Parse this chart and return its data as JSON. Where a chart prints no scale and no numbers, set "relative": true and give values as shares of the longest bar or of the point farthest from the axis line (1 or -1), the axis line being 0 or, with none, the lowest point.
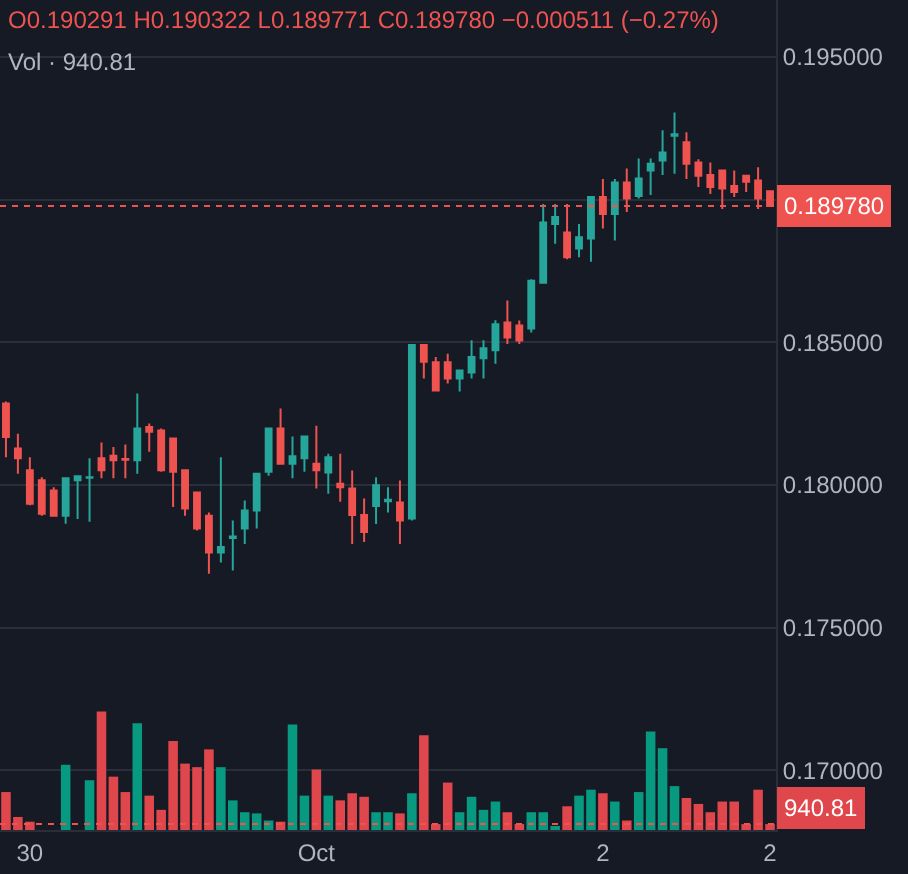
{
  "chart_data": [
    {
      "type": "candlestick",
      "categories": [
        null,
        null,
        "30",
        null,
        null,
        null,
        null,
        null,
        null,
        null,
        null,
        null,
        null,
        null,
        null,
        null,
        null,
        null,
        null,
        null,
        null,
        null,
        null,
        null,
        null,
        null,
        "Oct",
        null,
        null,
        null,
        null,
        null,
        null,
        null,
        null,
        null,
        null,
        null,
        null,
        null,
        null,
        null,
        null,
        null,
        null,
        null,
        null,
        null,
        null,
        null,
        "2",
        null,
        null,
        null,
        null,
        null,
        null,
        null,
        null,
        null,
        null,
        null,
        null,
        null,
        "2"
      ],
      "ohlc": [
        [
          0.18285,
          0.18292,
          0.18097,
          0.18168
        ],
        [
          0.18128,
          0.18179,
          0.18039,
          0.18093
        ],
        [
          0.18051,
          0.18097,
          0.17929,
          0.17934
        ],
        [
          0.18016,
          0.18027,
          0.17892,
          0.17899
        ],
        [
          0.1798,
          0.17992,
          0.17892,
          0.17892
        ],
        [
          0.17892,
          0.18027,
          0.17864,
          0.18023
        ],
        [
          0.18016,
          0.1803,
          0.1788,
          0.1803
        ],
        [
          0.18025,
          0.18093,
          0.17871,
          0.18027
        ],
        [
          0.18093,
          0.18149,
          0.18023,
          0.18051
        ],
        [
          0.18102,
          0.18133,
          0.18023,
          0.18086
        ],
        [
          0.18091,
          0.18142,
          0.18023,
          0.18088
        ],
        [
          0.18086,
          0.1832,
          0.18039,
          0.18198
        ],
        [
          0.18203,
          0.18215,
          0.18116,
          0.18186
        ],
        [
          0.18191,
          0.18198,
          0.18046,
          0.18051
        ],
        [
          0.18163,
          0.18163,
          0.17922,
          0.18046
        ],
        [
          0.18051,
          0.18051,
          0.17892,
          0.17917
        ],
        [
          0.17973,
          0.17973,
          0.1784,
          0.17847
        ],
        [
          0.17892,
          0.17903,
          0.17688,
          0.17763
        ],
        [
          0.17763,
          0.18097,
          0.17728,
          0.17782
        ],
        [
          0.17814,
          0.17875,
          0.177,
          0.17819
        ],
        [
          0.17847,
          0.17945,
          0.17793,
          0.1791
        ],
        [
          0.1791,
          0.18039,
          0.17847,
          0.18039
        ],
        [
          0.18046,
          0.18198,
          0.18032,
          0.18198
        ],
        [
          0.18198,
          0.18268,
          0.18074,
          0.18074
        ],
        [
          0.18074,
          0.1817,
          0.18023,
          0.181
        ],
        [
          0.18093,
          0.1817,
          0.18046,
          0.1817
        ],
        [
          0.18074,
          0.18207,
          0.17987,
          0.18051
        ],
        [
          0.18043,
          0.18109,
          0.17969,
          0.18097
        ],
        [
          0.18004,
          0.18109,
          0.17941,
          0.17992
        ],
        [
          0.17987,
          0.1805,
          0.17793,
          0.17894
        ],
        [
          0.17894,
          0.17952,
          0.178,
          0.17835
        ],
        [
          0.17926,
          0.18027,
          0.17863,
          0.17999
        ],
        [
          0.17943,
          0.17992,
          0.17903,
          0.17948
        ],
        [
          0.17938,
          0.18015,
          0.17793,
          0.17875
        ],
        [
          0.17882,
          0.1849,
          0.17875,
          0.1849
        ],
        [
          0.1849,
          0.1849,
          0.18373,
          0.18432
        ],
        [
          0.1843,
          0.18448,
          0.18331,
          0.18331
        ],
        [
          0.1843,
          0.1846,
          0.18355,
          0.18373
        ],
        [
          0.18373,
          0.18401,
          0.18327,
          0.18401
        ],
        [
          0.18394,
          0.18507,
          0.18373,
          0.18448
        ],
        [
          0.18444,
          0.18507,
          0.18373,
          0.18479
        ],
        [
          0.18472,
          0.18577,
          0.18425,
          0.18563
        ],
        [
          0.18569,
          0.18646,
          0.18494,
          0.18517
        ],
        [
          0.18559,
          0.18576,
          0.18494,
          0.18506
        ],
        [
          0.18548,
          0.18721,
          0.18534,
          0.18716
        ],
        [
          0.18709,
          0.18985,
          0.18709,
          0.1892
        ],
        [
          0.18915,
          0.18985,
          0.18845,
          0.18939
        ],
        [
          0.18885,
          0.18985,
          0.18791,
          0.18798
        ],
        [
          0.18829,
          0.18915,
          0.18798,
          0.18868
        ],
        [
          0.18864,
          0.19009,
          0.18782,
          0.19009
        ],
        [
          0.19009,
          0.19072,
          0.18899,
          0.1895
        ],
        [
          0.1895,
          0.19072,
          0.18857,
          0.1906
        ],
        [
          0.1906,
          0.19109,
          0.18957,
          0.19004
        ],
        [
          0.19013,
          0.19144,
          0.19004,
          0.19074
        ],
        [
          0.19102,
          0.19144,
          0.19016,
          0.19126
        ],
        [
          0.19137,
          0.19243,
          0.19086,
          0.19165
        ],
        [
          0.19224,
          0.19306,
          0.19091,
          0.19229
        ],
        [
          0.19201,
          0.19236,
          0.19072,
          0.19126
        ],
        [
          0.1913,
          0.19142,
          0.19044,
          0.19084
        ],
        [
          0.19086,
          0.1913,
          0.1902,
          0.19044
        ],
        [
          0.19102,
          0.19102,
          0.18967,
          0.19039
        ],
        [
          0.19048,
          0.19102,
          0.19009,
          0.19027
        ],
        [
          0.19084,
          0.19084,
          0.19027,
          0.19063
        ],
        [
          0.19067,
          0.19114,
          0.18967,
          0.19004
        ],
        [
          0.190291,
          0.190322,
          0.189771,
          0.18978
        ]
      ],
      "colors": [
        "#ef5350",
        "#ef5350",
        "#ef5350",
        "#ef5350",
        "#ef5350",
        "#26a69a",
        "#26a69a",
        "#26a69a",
        "#ef5350",
        "#ef5350",
        "#ef5350",
        "#26a69a",
        "#ef5350",
        "#ef5350",
        "#ef5350",
        "#ef5350",
        "#ef5350",
        "#ef5350",
        "#26a69a",
        "#26a69a",
        "#26a69a",
        "#26a69a",
        "#26a69a",
        "#ef5350",
        "#26a69a",
        "#26a69a",
        "#ef5350",
        "#26a69a",
        "#ef5350",
        "#ef5350",
        "#ef5350",
        "#26a69a",
        "#26a69a",
        "#ef5350",
        "#26a69a",
        "#ef5350",
        "#ef5350",
        "#ef5350",
        "#26a69a",
        "#26a69a",
        "#26a69a",
        "#26a69a",
        "#ef5350",
        "#ef5350",
        "#26a69a",
        "#26a69a",
        "#26a69a",
        "#ef5350",
        "#26a69a",
        "#26a69a",
        "#ef5350",
        "#26a69a",
        "#ef5350",
        "#26a69a",
        "#26a69a",
        "#26a69a",
        "#26a69a",
        "#ef5350",
        "#ef5350",
        "#ef5350",
        "#ef5350",
        "#ef5350",
        "#ef5350",
        "#ef5350",
        "#ef5350"
      ],
      "ylim": [
        0.1679,
        0.197
      ],
      "yticks": [
        {
          "value": 0.17,
          "label": "0.170000"
        },
        {
          "value": 0.175,
          "label": "0.175000"
        },
        {
          "value": 0.18,
          "label": "0.180000"
        },
        {
          "value": 0.185,
          "label": "0.185000"
        },
        {
          "value": 0.19,
          "label": null
        },
        {
          "value": 0.195,
          "label": "0.195000"
        }
      ],
      "grid": "y",
      "ref_lines": [
        {
          "axis": "y",
          "value": 0.18978,
          "label": "0.189780",
          "color": "#ef5350",
          "line_style": "dotted"
        }
      ],
      "annotations": [
        "O0.190291 H0.190322 L0.189771 C0.189780 −0.000511 (−0.27%)"
      ]
    },
    {
      "type": "bar",
      "relative": true,
      "categories": [
        null,
        null,
        null,
        null,
        null,
        null,
        null,
        null,
        null,
        null,
        null,
        null,
        null,
        null,
        null,
        null,
        null,
        null,
        null,
        null,
        null,
        null,
        null,
        null,
        null,
        null,
        null,
        null,
        null,
        null,
        null,
        null,
        null,
        null,
        null,
        null,
        null,
        null,
        null,
        null,
        null,
        null,
        null,
        null,
        null,
        null,
        null,
        null,
        null,
        null,
        null,
        null,
        null,
        null,
        null,
        null,
        null,
        null,
        null,
        null,
        null,
        null,
        null,
        null,
        null
      ],
      "values": [
        0.32,
        0.11,
        0.07,
        null,
        null,
        0.55,
        null,
        0.42,
        1,
        0.45,
        0.32,
        0.9,
        0.29,
        0.17,
        0.75,
        0.56,
        0.53,
        0.68,
        0.53,
        0.25,
        0.15,
        0.14,
        0.08,
        0.07,
        0.89,
        0.29,
        0.51,
        0.29,
        0.25,
        0.31,
        0.28,
        0.15,
        0.15,
        0.14,
        0.31,
        0.8,
        0.05,
        0.4,
        0.15,
        0.28,
        0.17,
        0.24,
        0.15,
        0.05,
        0.15,
        0.15,
        0.03,
        0.2,
        0.29,
        0.34,
        0.31,
        0.24,
        0.08,
        0.32,
        0.83,
        0.69,
        0.37,
        0.27,
        0.22,
        0.15,
        0.24,
        0.24,
        0.05,
        0.34,
        0.05
      ],
      "colors": [
        "#e0474c",
        "#e0474c",
        "#e0474c",
        "#e0474c",
        "#e0474c",
        "#089981",
        "#089981",
        "#089981",
        "#e0474c",
        "#e0474c",
        "#e0474c",
        "#089981",
        "#e0474c",
        "#e0474c",
        "#e0474c",
        "#e0474c",
        "#e0474c",
        "#e0474c",
        "#089981",
        "#089981",
        "#089981",
        "#089981",
        "#089981",
        "#e0474c",
        "#089981",
        "#089981",
        "#e0474c",
        "#089981",
        "#e0474c",
        "#e0474c",
        "#e0474c",
        "#089981",
        "#089981",
        "#e0474c",
        "#089981",
        "#e0474c",
        "#e0474c",
        "#e0474c",
        "#089981",
        "#089981",
        "#089981",
        "#089981",
        "#e0474c",
        "#e0474c",
        "#089981",
        "#089981",
        "#089981",
        "#e0474c",
        "#089981",
        "#089981",
        "#e0474c",
        "#089981",
        "#e0474c",
        "#089981",
        "#089981",
        "#089981",
        "#089981",
        "#e0474c",
        "#e0474c",
        "#e0474c",
        "#e0474c",
        "#e0474c",
        "#e0474c",
        "#e0474c",
        "#e0474c"
      ],
      "ref_lines": [
        {
          "axis": "y",
          "value": 0.05,
          "color": "#ef5350",
          "line_style": "dotted"
        }
      ],
      "annotations": [
        "Vol · 940.81",
        "940.81"
      ]
    }
  ]
}
